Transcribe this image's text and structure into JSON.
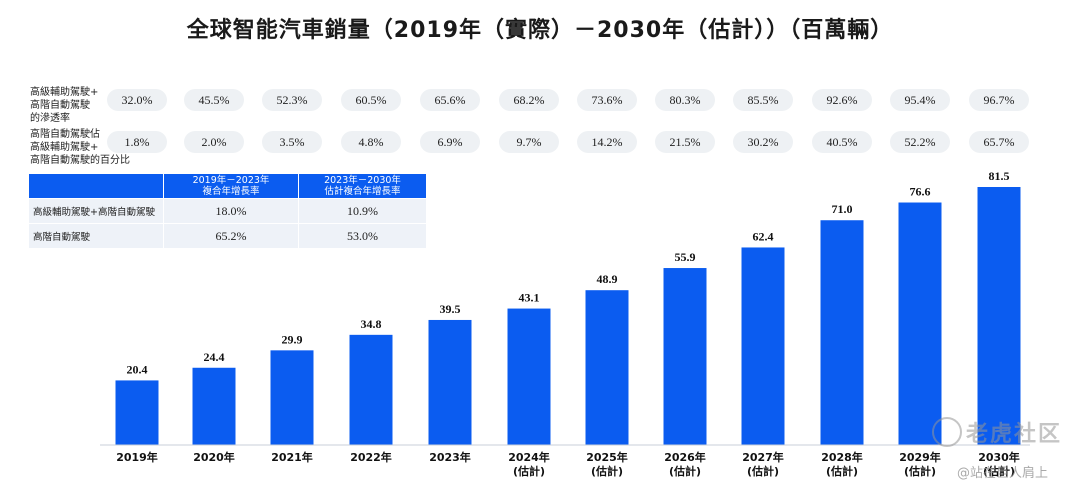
{
  "title": "全球智能汽車銷量（2019年（實際）－2030年（估計））（百萬輛）",
  "metrics": [
    {
      "label": "高級輔助駕駛+\n高階自動駕駛\n的滲透率",
      "values": [
        "32.0%",
        "45.5%",
        "52.3%",
        "60.5%",
        "65.6%",
        "68.2%",
        "73.6%",
        "80.3%",
        "85.5%",
        "92.6%",
        "95.4%",
        "96.7%"
      ]
    },
    {
      "label": "高階自動駕駛佔\n高級輔助駕駛+\n高階自動駕駛的百分比",
      "values": [
        "1.8%",
        "2.0%",
        "3.5%",
        "4.8%",
        "6.9%",
        "9.7%",
        "14.2%",
        "21.5%",
        "30.2%",
        "40.5%",
        "52.2%",
        "65.7%"
      ]
    }
  ],
  "growth_table": {
    "headers": [
      "",
      "2019年－2023年\n複合年增長率",
      "2023年－2030年\n估計複合年增長率"
    ],
    "rows": [
      [
        "高級輔助駕駛+高階自動駕駛",
        "18.0%",
        "10.9%"
      ],
      [
        "高階自動駕駛",
        "65.2%",
        "53.0%"
      ]
    ]
  },
  "chart_data": {
    "type": "bar",
    "categories": [
      "2019年",
      "2020年",
      "2021年",
      "2022年",
      "2023年",
      "2024年\n(估計)",
      "2025年\n(估計)",
      "2026年\n(估計)",
      "2027年\n(估計)",
      "2028年\n(估計)",
      "2029年\n(估計)",
      "2030年\n(估計)"
    ],
    "values": [
      20.4,
      24.4,
      29.9,
      34.8,
      39.5,
      43.1,
      48.9,
      55.9,
      62.4,
      71.0,
      76.6,
      81.5
    ],
    "value_labels": [
      "20.4",
      "24.4",
      "29.9",
      "34.8",
      "39.5",
      "43.1",
      "48.9",
      "55.9",
      "62.4",
      "71.0",
      "76.6",
      "81.5"
    ],
    "bar_color": "#0b5cf0",
    "ylim": [
      0,
      81.5
    ],
    "grid": false,
    "legend": "none"
  },
  "watermark": {
    "main": "老虎社区",
    "sub": "@站在巨人肩上"
  }
}
